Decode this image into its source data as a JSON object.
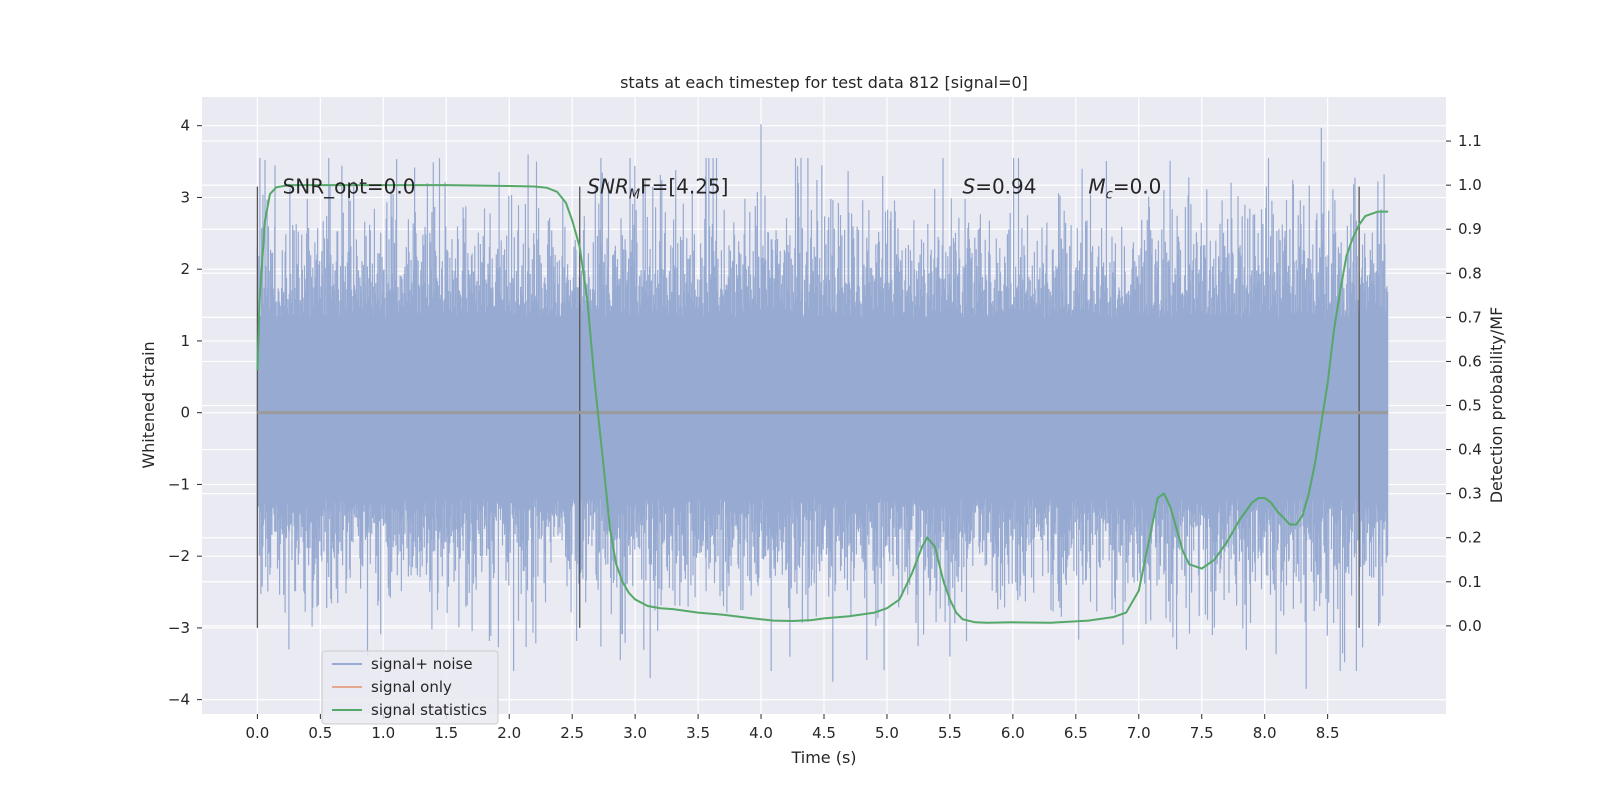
{
  "chart_data": {
    "type": "line",
    "title": "stats at each timestep for test data 812 [signal=0]",
    "xlabel": "Time (s)",
    "ylabel": "Whitened strain",
    "y2label": "Detection probability/MF",
    "xlim": [
      -0.44,
      9.44
    ],
    "ylim": [
      -4.2,
      4.4
    ],
    "y2lim": [
      -0.2,
      1.2
    ],
    "xticks": [
      0.0,
      0.5,
      1.0,
      1.5,
      2.0,
      2.5,
      3.0,
      3.5,
      4.0,
      4.5,
      5.0,
      5.5,
      6.0,
      6.5,
      7.0,
      7.5,
      8.0,
      8.5
    ],
    "xtick_labels": [
      "0.0",
      "0.5",
      "1.0",
      "1.5",
      "2.0",
      "2.5",
      "3.0",
      "3.5",
      "4.0",
      "4.5",
      "5.0",
      "5.5",
      "6.0",
      "6.5",
      "7.0",
      "7.5",
      "8.0",
      "8.5"
    ],
    "yticks": [
      4,
      3,
      2,
      1,
      0,
      -1,
      -2,
      -3,
      -4
    ],
    "ytick_labels": [
      "4",
      "3",
      "2",
      "1",
      "0",
      "−1",
      "−2",
      "−3",
      "−4"
    ],
    "y2ticks": [
      1.1,
      1.0,
      0.9,
      0.8,
      0.7,
      0.6,
      0.5,
      0.4,
      0.3,
      0.2,
      0.1,
      0.0
    ],
    "y2tick_labels": [
      "1.1",
      "1.0",
      "0.9",
      "0.8",
      "0.7",
      "0.6",
      "0.5",
      "0.4",
      "0.3",
      "0.2",
      "0.1",
      "0.0"
    ],
    "grid": true,
    "noise_span": [
      0.0,
      8.98
    ],
    "noise_band": [
      -1.2,
      1.32
    ],
    "noise_extremes": [
      [
        0.02,
        3.55
      ],
      [
        0.14,
        3.45
      ],
      [
        1.35,
        3.2
      ],
      [
        2.15,
        3.6
      ],
      [
        4.0,
        4.02
      ],
      [
        6.55,
        3.4
      ],
      [
        8.45,
        3.97
      ],
      [
        0.25,
        -3.3
      ],
      [
        3.12,
        -3.7
      ],
      [
        4.57,
        -3.75
      ],
      [
        5.5,
        -3.4
      ],
      [
        7.3,
        -3.3
      ],
      [
        8.33,
        -3.85
      ],
      [
        8.6,
        -3.6
      ]
    ],
    "vlines": [
      0.0,
      2.56,
      8.75
    ],
    "vline_range": [
      -3.0,
      3.15
    ],
    "signal_only_value": 0.0,
    "series": [
      {
        "name": "signal+ noise",
        "color": "#97aad1",
        "axis": "left",
        "style": "noise"
      },
      {
        "name": "signal only",
        "color": "#e5a78e",
        "axis": "left",
        "values_constant": 0.0
      },
      {
        "name": "signal statistics",
        "color": "#55a868",
        "axis": "right",
        "x": [
          0.0,
          0.02,
          0.06,
          0.1,
          0.15,
          0.25,
          0.4,
          0.6,
          1.0,
          1.5,
          2.0,
          2.2,
          2.3,
          2.38,
          2.45,
          2.5,
          2.56,
          2.62,
          2.68,
          2.75,
          2.8,
          2.85,
          2.9,
          2.95,
          3.0,
          3.1,
          3.2,
          3.3,
          3.5,
          3.7,
          3.9,
          4.1,
          4.25,
          4.4,
          4.5,
          4.7,
          4.9,
          5.0,
          5.1,
          5.2,
          5.28,
          5.32,
          5.38,
          5.45,
          5.5,
          5.55,
          5.6,
          5.7,
          5.8,
          6.0,
          6.3,
          6.6,
          6.8,
          6.9,
          7.0,
          7.05,
          7.1,
          7.15,
          7.2,
          7.25,
          7.3,
          7.35,
          7.4,
          7.5,
          7.6,
          7.7,
          7.8,
          7.9,
          7.95,
          8.0,
          8.05,
          8.1,
          8.15,
          8.2,
          8.25,
          8.3,
          8.35,
          8.4,
          8.45,
          8.5,
          8.55,
          8.6,
          8.65,
          8.7,
          8.75,
          8.8,
          8.9,
          8.98
        ],
        "values": [
          0.58,
          0.75,
          0.92,
          0.98,
          0.995,
          1.0,
          1.0,
          1.0,
          1.0,
          1.0,
          0.998,
          0.997,
          0.994,
          0.985,
          0.96,
          0.92,
          0.86,
          0.74,
          0.55,
          0.36,
          0.22,
          0.14,
          0.1,
          0.075,
          0.06,
          0.045,
          0.04,
          0.038,
          0.03,
          0.025,
          0.018,
          0.012,
          0.011,
          0.013,
          0.017,
          0.022,
          0.03,
          0.04,
          0.06,
          0.12,
          0.18,
          0.2,
          0.18,
          0.1,
          0.06,
          0.03,
          0.015,
          0.008,
          0.007,
          0.008,
          0.007,
          0.012,
          0.02,
          0.03,
          0.08,
          0.15,
          0.22,
          0.29,
          0.3,
          0.27,
          0.22,
          0.17,
          0.14,
          0.13,
          0.15,
          0.19,
          0.24,
          0.28,
          0.29,
          0.29,
          0.28,
          0.26,
          0.245,
          0.23,
          0.23,
          0.25,
          0.3,
          0.37,
          0.46,
          0.55,
          0.67,
          0.76,
          0.84,
          0.88,
          0.91,
          0.93,
          0.94,
          0.94
        ]
      }
    ],
    "annotations": [
      {
        "text": "SNR_opt=0.0",
        "x": 0.2,
        "y": 3.15
      },
      {
        "text": "SNR",
        "sub": "M",
        "suffix": "F=[4.25]",
        "italic": true,
        "x": 2.62,
        "y": 3.15
      },
      {
        "text": "S",
        "suffix": "=0.94",
        "italic": true,
        "x": 5.6,
        "y": 3.15
      },
      {
        "text": "M",
        "sub": "c",
        "suffix": "=0.0",
        "italic": true,
        "x": 6.6,
        "y": 3.15
      }
    ],
    "legend": {
      "position": "lower-left",
      "entries": [
        {
          "label": "signal+ noise",
          "color": "#97aad1"
        },
        {
          "label": "signal only",
          "color": "#e5a78e"
        },
        {
          "label": "signal statistics",
          "color": "#55a868"
        }
      ]
    },
    "colors": {
      "background": "#eaeaf2",
      "grid": "#ffffff",
      "noise": "#97aad1",
      "signal_only": "#e5a78e",
      "statistics": "#55a868",
      "vline": "#555555"
    }
  }
}
